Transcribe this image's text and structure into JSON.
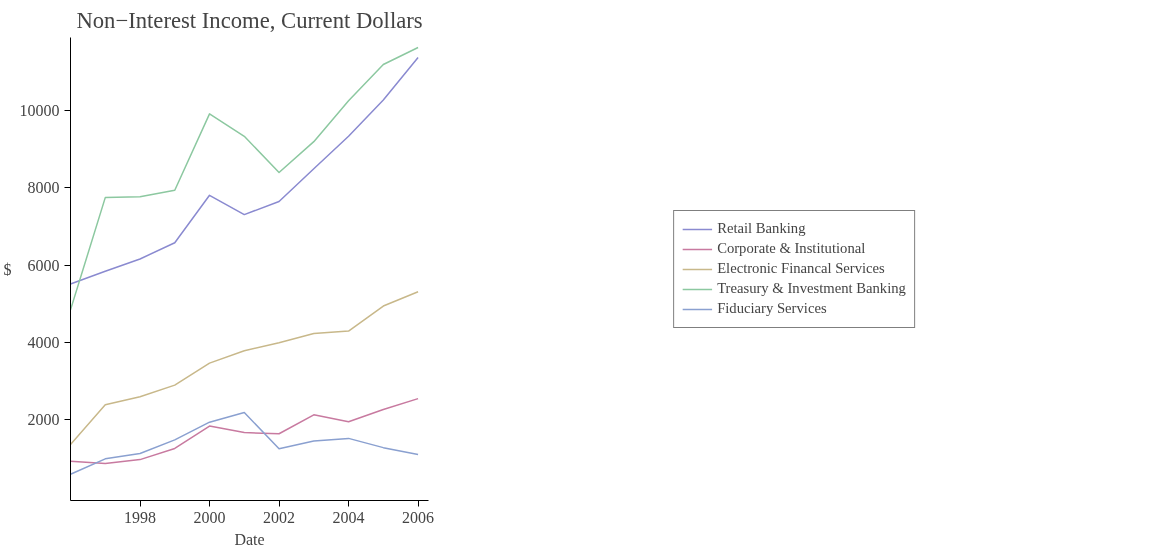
{
  "chart_data": {
    "type": "line",
    "title": "Non−Interest Income, Current Dollars",
    "xlabel": "Date",
    "ylabel": "$",
    "x": [
      1996,
      1997,
      1998,
      1999,
      2000,
      2001,
      2002,
      2003,
      2004,
      2005,
      2006
    ],
    "xlim": [
      1996,
      2006.3
    ],
    "xticks": [
      1998,
      2000,
      2002,
      2004,
      2006
    ],
    "ylim": [
      -100,
      11900
    ],
    "yticks": [
      2000,
      4000,
      6000,
      8000,
      10000
    ],
    "grid": false,
    "legend": "right",
    "marker": "none",
    "line_style": "solid",
    "series": [
      {
        "name": "Retail Banking",
        "color": "#8a8ad0",
        "values": [
          5510,
          5840,
          6160,
          6580,
          7810,
          7310,
          7650,
          8500,
          9340,
          10280,
          11380
        ]
      },
      {
        "name": "Corporate & Institutional",
        "color": "#c87aa0",
        "values": [
          920,
          860,
          960,
          1250,
          1830,
          1660,
          1630,
          2120,
          1940,
          2260,
          2540
        ]
      },
      {
        "name": "Electronic Financal Services",
        "color": "#c8b88a",
        "values": [
          1350,
          2380,
          2590,
          2890,
          3460,
          3780,
          3990,
          4230,
          4290,
          4940,
          5310
        ]
      },
      {
        "name": "Treasury & Investment Banking",
        "color": "#8cc8a0",
        "values": [
          4840,
          7750,
          7770,
          7940,
          9920,
          9340,
          8400,
          9200,
          10260,
          11200,
          11640
        ]
      },
      {
        "name": "Fiduciary Services",
        "color": "#8aa0d0",
        "values": [
          580,
          980,
          1120,
          1470,
          1930,
          2180,
          1240,
          1440,
          1510,
          1270,
          1090
        ]
      }
    ]
  }
}
